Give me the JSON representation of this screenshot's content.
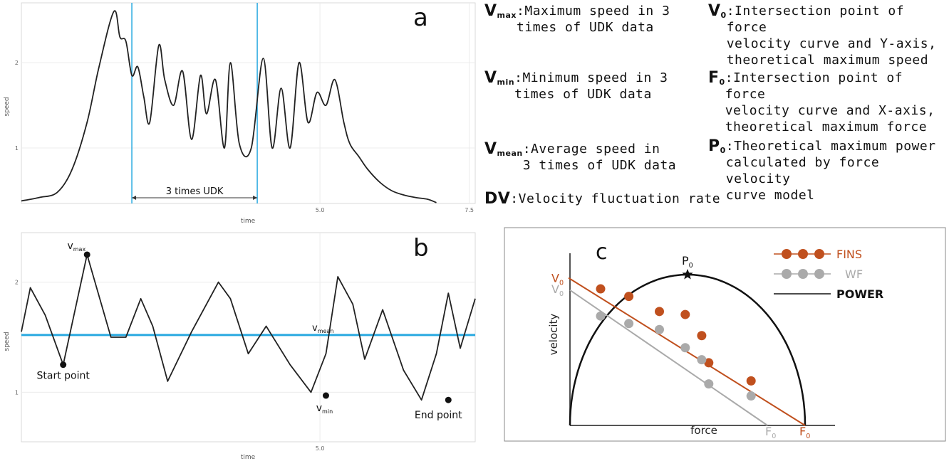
{
  "legend": {
    "vmax": {
      "sym": "V",
      "sub": "max",
      "text": ":Maximum speed in 3\n times of UDK data"
    },
    "vmin": {
      "sym": "V",
      "sub": "min",
      "text": ":Minimum speed in 3\n times of UDK data"
    },
    "vmean": {
      "sym": "V",
      "sub": "mean",
      "text": " :Average speed in\n 3 times of UDK data"
    },
    "dv": {
      "sym": "DV",
      "text": ":Velocity fluctuation rate"
    },
    "v0": {
      "sym": "V",
      "sub": "0",
      "text": ":Intersection point of force\nvelocity curve and Y-axis,\ntheoretical maximum speed"
    },
    "f0": {
      "sym": "F",
      "sub": "0",
      "text": ":Intersection point of force\nvelocity curve and X-axis,\ntheoretical maximum force"
    },
    "p0": {
      "sym": "P",
      "sub": "0",
      "text": ":Theoretical maximum power\ncalculated by force velocity\ncurve model"
    }
  },
  "chart_data": [
    {
      "type": "line",
      "panel_label": "a",
      "xlabel": "time",
      "ylabel": "speed",
      "xlim": [
        0,
        7.6
      ],
      "ylim": [
        0.35,
        2.7
      ],
      "x_ticks": [
        "5.0",
        "7.5"
      ],
      "y_ticks": [
        "2",
        "1"
      ],
      "x_tick_values": [
        5.0,
        7.5
      ],
      "y_tick_values": [
        2,
        1
      ],
      "grid": true,
      "x": [
        0.0,
        0.3,
        0.6,
        0.85,
        1.1,
        1.3,
        1.55,
        1.65,
        1.75,
        1.85,
        1.95,
        2.05,
        2.15,
        2.3,
        2.4,
        2.55,
        2.7,
        2.85,
        3.0,
        3.1,
        3.25,
        3.4,
        3.5,
        3.65,
        3.85,
        4.05,
        4.2,
        4.35,
        4.5,
        4.65,
        4.8,
        4.95,
        5.1,
        5.25,
        5.4,
        5.5,
        5.65,
        5.8,
        6.0,
        6.2,
        6.4,
        6.6,
        6.8,
        6.95
      ],
      "values": [
        0.38,
        0.42,
        0.48,
        0.75,
        1.3,
        1.95,
        2.6,
        2.3,
        2.25,
        1.85,
        1.95,
        1.6,
        1.3,
        2.2,
        1.8,
        1.5,
        1.9,
        1.1,
        1.85,
        1.4,
        1.8,
        1.0,
        2.0,
        1.05,
        1.0,
        2.05,
        1.0,
        1.7,
        1.0,
        2.0,
        1.3,
        1.65,
        1.5,
        1.8,
        1.3,
        1.05,
        0.9,
        0.75,
        0.6,
        0.5,
        0.45,
        0.42,
        0.4,
        0.36
      ],
      "annotations": [
        {
          "text": "3 times UDK",
          "x_start": 1.85,
          "x_end": 3.95
        }
      ],
      "vlines": [
        1.85,
        3.95
      ]
    },
    {
      "type": "line",
      "panel_label": "b",
      "xlabel": "time",
      "ylabel": "speed",
      "xlim": [
        0,
        7.6
      ],
      "ylim": [
        0.55,
        2.45
      ],
      "x_ticks": [
        "5.0"
      ],
      "y_ticks": [
        "2",
        "1"
      ],
      "x_tick_values": [
        5.0
      ],
      "y_tick_values": [
        2,
        1
      ],
      "grid": true,
      "x": [
        0.0,
        0.15,
        0.4,
        0.7,
        1.1,
        1.5,
        1.75,
        2.0,
        2.2,
        2.45,
        2.85,
        3.3,
        3.5,
        3.8,
        4.1,
        4.5,
        4.85,
        5.1,
        5.3,
        5.55,
        5.75,
        6.05,
        6.4,
        6.7,
        6.95,
        7.15,
        7.35,
        7.6
      ],
      "values": [
        1.55,
        1.95,
        1.7,
        1.25,
        2.25,
        1.5,
        1.5,
        1.85,
        1.6,
        1.1,
        1.55,
        2.0,
        1.85,
        1.35,
        1.6,
        1.25,
        1.0,
        1.35,
        2.05,
        1.8,
        1.3,
        1.75,
        1.2,
        0.93,
        1.35,
        1.9,
        1.4,
        1.85
      ],
      "hline": {
        "value": 1.52,
        "label": "v",
        "label_sub": "mean"
      },
      "points": [
        {
          "label": "Start point",
          "x": 0.7,
          "y": 1.25
        },
        {
          "label": "v",
          "sub": "max",
          "x": 1.1,
          "y": 2.25
        },
        {
          "label": "v",
          "sub": "min",
          "x": 5.1,
          "y": 0.97
        },
        {
          "label": "End point",
          "x": 7.15,
          "y": 0.93
        }
      ]
    },
    {
      "type": "scatter",
      "panel_label": "c",
      "xlabel": "force",
      "ylabel": "velocity",
      "xlim": [
        0,
        10
      ],
      "ylim": [
        0,
        10
      ],
      "legend": [
        {
          "name": "FINS",
          "color": "#c0501e"
        },
        {
          "name": "WF",
          "color": "#aaaaaa"
        },
        {
          "name": "POWER",
          "color": "#111111"
        }
      ],
      "series": [
        {
          "name": "FINS",
          "color": "#c0501e",
          "x": [
            1.0,
            2.2,
            3.5,
            4.6,
            5.3,
            5.6,
            7.4
          ],
          "y": [
            8.3,
            7.8,
            6.8,
            6.6,
            5.2,
            3.4,
            2.2
          ],
          "fit": {
            "x0": 0.0,
            "y0": 9.5,
            "x1": 10.0,
            "y1": 0.0
          }
        },
        {
          "name": "WF",
          "color": "#aaaaaa",
          "x": [
            1.0,
            2.2,
            3.5,
            4.6,
            5.3,
            5.6,
            7.4
          ],
          "y": [
            6.5,
            6.0,
            5.6,
            4.4,
            3.6,
            2.0,
            1.2
          ],
          "fit": {
            "x0": 0.0,
            "y0": 8.5,
            "x1": 8.4,
            "y1": 0.0
          }
        }
      ],
      "power_curve": {
        "peak_x": 5.0,
        "peak_y": 10.0
      },
      "labels": {
        "p0": "P",
        "v0_fins": "V",
        "v0_wf": "V",
        "f0_fins": "F",
        "f0_wf": "F",
        "sub": "0"
      }
    }
  ]
}
